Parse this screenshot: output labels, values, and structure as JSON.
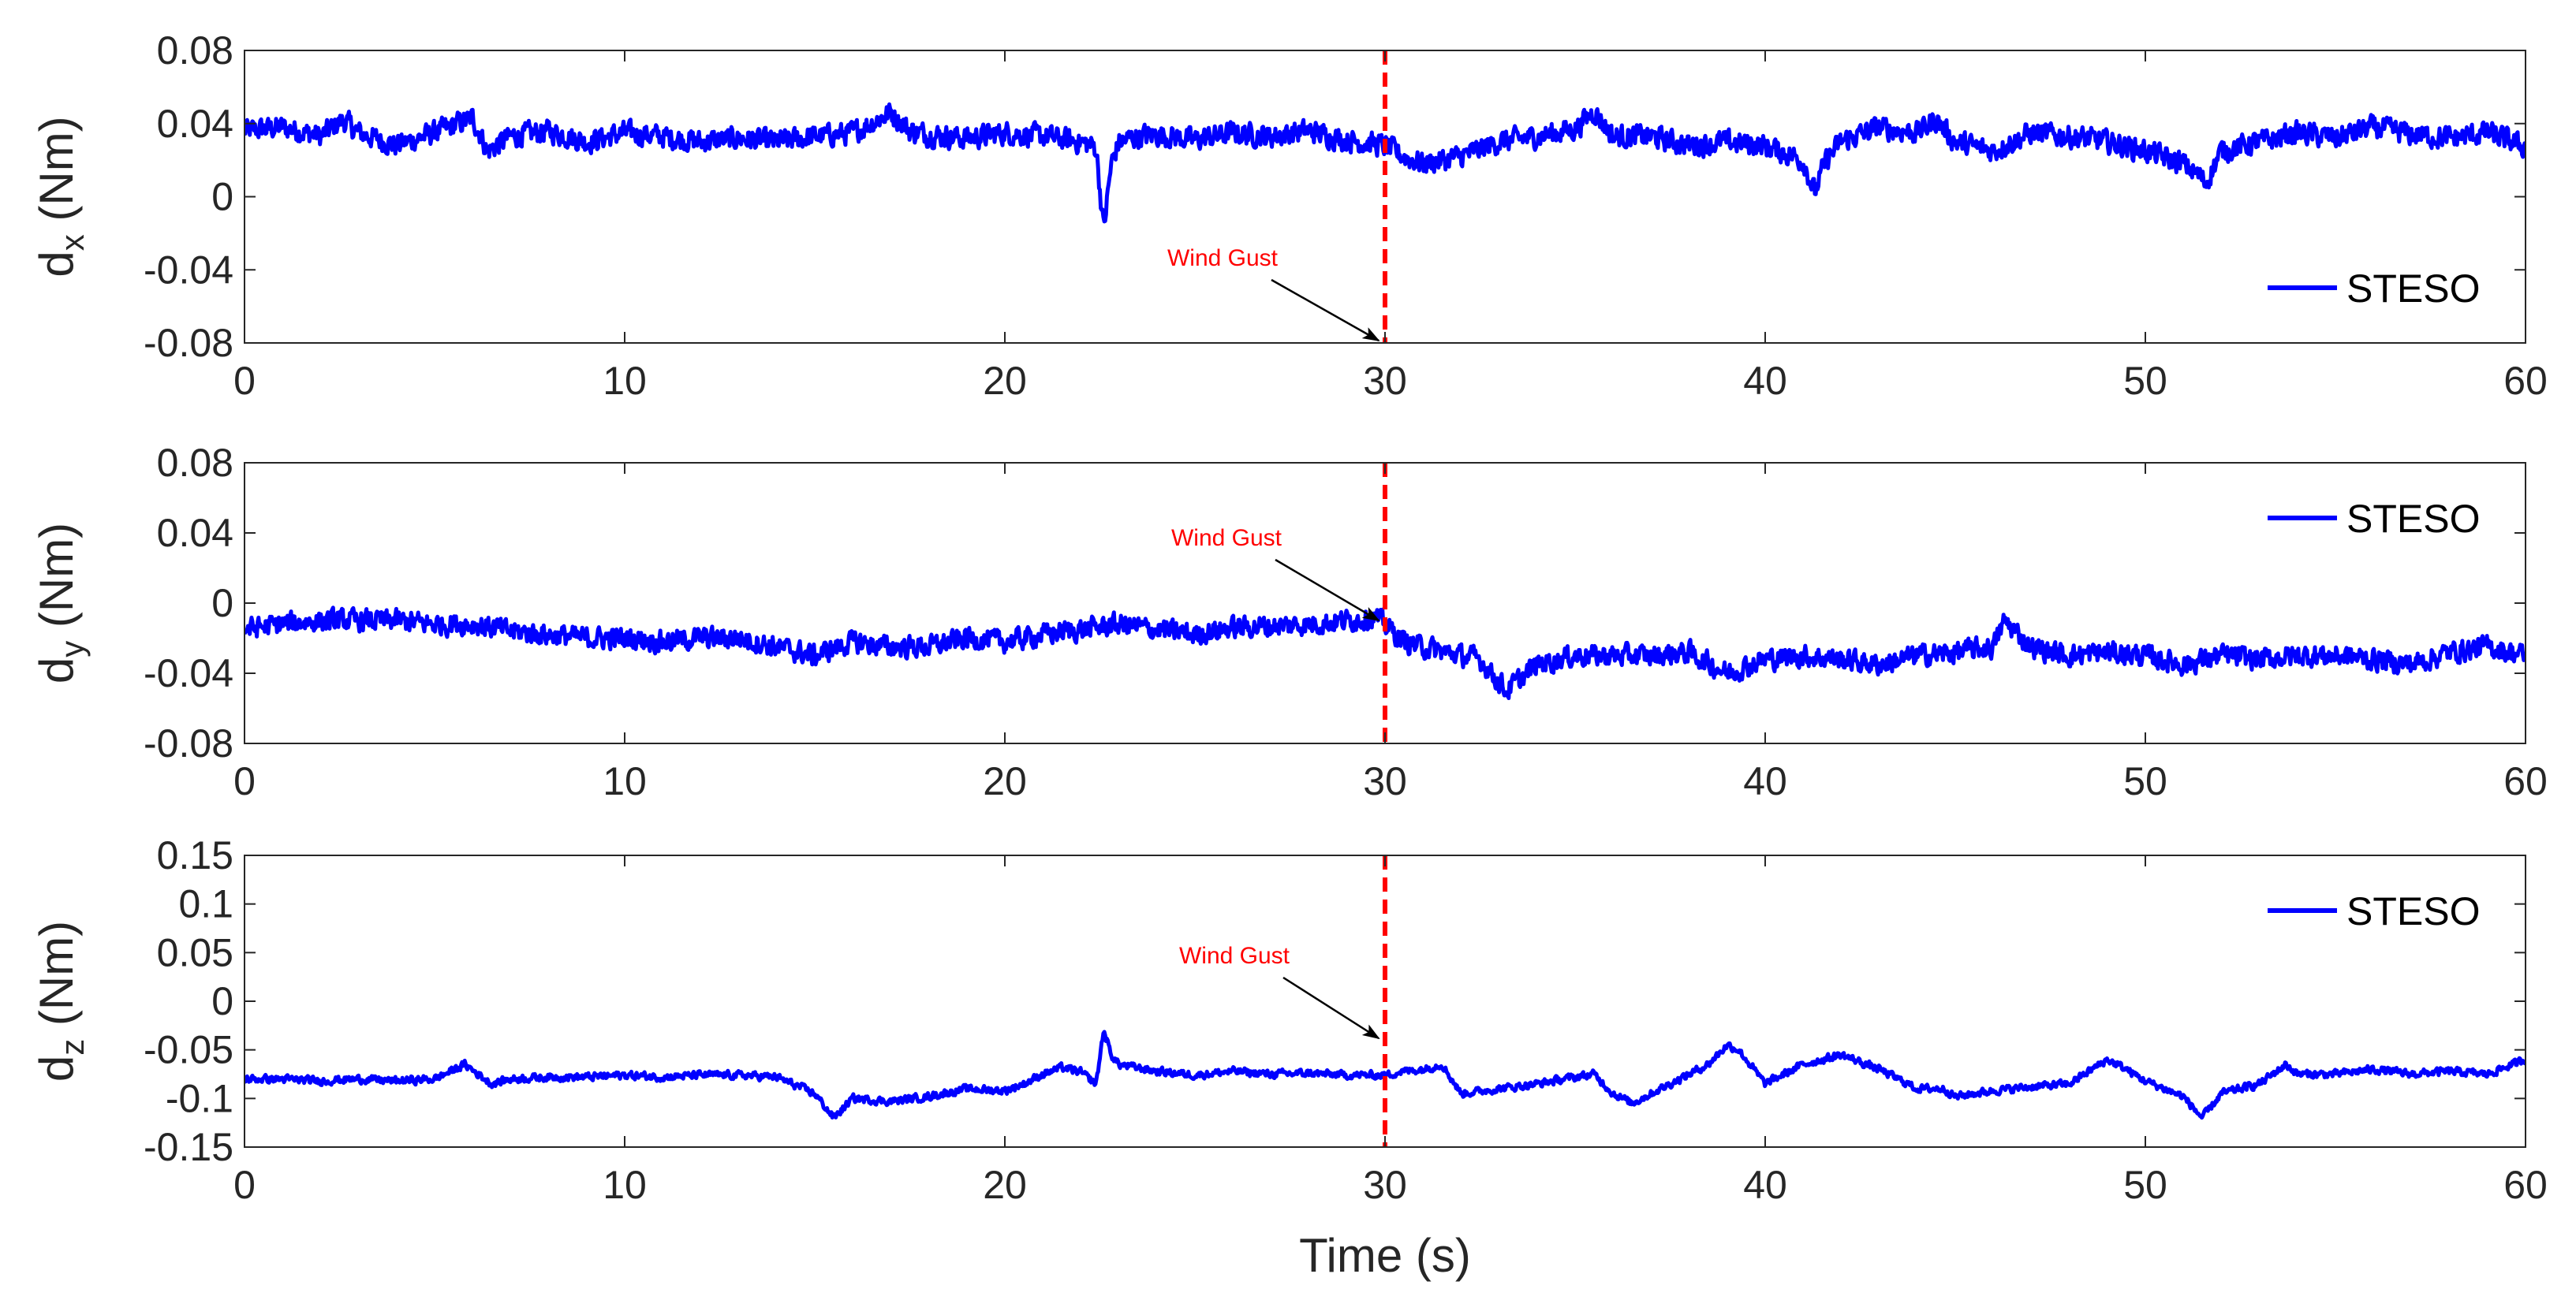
{
  "colors": {
    "series": "#0000FF",
    "event_line": "#FF0000",
    "annotation_text": "#FF0000",
    "arrow": "#000000",
    "axis": "#262626"
  },
  "chart_data": [
    {
      "type": "line",
      "ylabel_main": "d",
      "ylabel_sub": "x",
      "ylabel_unit": " (Nm)",
      "xlim": [
        0,
        60
      ],
      "ylim": [
        -0.08,
        0.08
      ],
      "xticks": [
        0,
        10,
        20,
        30,
        40,
        50,
        60
      ],
      "xtick_labels": [
        "0",
        "10",
        "20",
        "30",
        "40",
        "50",
        "60"
      ],
      "yticks": [
        0.08,
        0.04,
        0,
        -0.04,
        -0.08
      ],
      "ytick_labels": [
        "0.08",
        "0.04",
        "0",
        "-0.04",
        "-0.08"
      ],
      "legend": {
        "label": "STESO",
        "location": "bottom-right"
      },
      "event": {
        "x": 30,
        "label": "Wind Gust"
      },
      "series": [
        {
          "name": "STESO",
          "x": [
            0,
            1,
            2,
            2.6,
            3,
            4,
            5,
            6,
            6.4,
            7,
            8,
            9,
            10,
            11,
            12,
            13,
            14,
            15,
            16,
            17,
            17.5,
            18,
            19,
            20,
            21,
            22,
            22.4,
            22.6,
            22.8,
            23,
            23.5,
            24,
            25,
            26,
            27,
            28,
            29,
            30,
            30.5,
            31,
            32,
            33,
            34,
            35,
            35.5,
            36,
            37,
            38,
            39,
            40,
            41,
            41.3,
            41.6,
            42,
            43,
            44,
            44.5,
            45,
            46,
            47,
            48,
            49,
            50,
            51,
            51.6,
            52,
            53,
            54,
            55,
            56,
            57,
            58,
            59,
            60
          ],
          "values": [
            0.036,
            0.038,
            0.033,
            0.042,
            0.035,
            0.028,
            0.035,
            0.043,
            0.025,
            0.033,
            0.036,
            0.03,
            0.035,
            0.033,
            0.03,
            0.032,
            0.03,
            0.033,
            0.035,
            0.046,
            0.036,
            0.034,
            0.032,
            0.035,
            0.033,
            0.03,
            0.027,
            -0.018,
            0.018,
            0.03,
            0.033,
            0.034,
            0.031,
            0.035,
            0.033,
            0.036,
            0.031,
            0.028,
            0.022,
            0.018,
            0.022,
            0.03,
            0.033,
            0.037,
            0.047,
            0.033,
            0.033,
            0.028,
            0.03,
            0.028,
            0.02,
            0.002,
            0.02,
            0.03,
            0.038,
            0.035,
            0.042,
            0.03,
            0.025,
            0.035,
            0.033,
            0.03,
            0.025,
            0.018,
            0.008,
            0.025,
            0.03,
            0.035,
            0.032,
            0.038,
            0.034,
            0.032,
            0.035,
            0.027
          ],
          "noise": 0.0055
        }
      ]
    },
    {
      "type": "line",
      "ylabel_main": "d",
      "ylabel_sub": "y",
      "ylabel_unit": " (Nm)",
      "xlim": [
        0,
        60
      ],
      "ylim": [
        -0.08,
        0.08
      ],
      "xticks": [
        0,
        10,
        20,
        30,
        40,
        50,
        60
      ],
      "xtick_labels": [
        "0",
        "10",
        "20",
        "30",
        "40",
        "50",
        "60"
      ],
      "yticks": [
        0.08,
        0.04,
        0,
        -0.04,
        -0.08
      ],
      "ytick_labels": [
        "0.08",
        "0.04",
        "0",
        "-0.04",
        "-0.08"
      ],
      "legend": {
        "label": "STESO",
        "location": "top-right"
      },
      "event": {
        "x": 30,
        "label": "Wind Gust"
      },
      "series": [
        {
          "name": "STESO",
          "x": [
            0,
            1,
            2,
            3,
            4,
            5,
            6,
            7,
            8,
            9,
            10,
            11,
            12,
            13,
            14,
            15,
            16,
            17,
            18,
            19,
            20,
            21,
            22,
            23,
            24,
            25,
            26,
            27,
            28,
            29,
            29.7,
            30,
            30.5,
            31,
            32,
            32.5,
            33,
            33.2,
            34,
            35,
            36,
            37,
            38,
            39,
            40,
            41,
            42,
            43,
            44,
            45,
            46,
            46.3,
            47,
            48,
            49,
            50,
            51,
            52,
            53,
            54,
            55,
            56,
            57,
            58,
            59,
            60
          ],
          "values": [
            -0.015,
            -0.012,
            -0.01,
            -0.01,
            -0.01,
            -0.012,
            -0.012,
            -0.016,
            -0.018,
            -0.02,
            -0.02,
            -0.022,
            -0.02,
            -0.02,
            -0.025,
            -0.03,
            -0.022,
            -0.025,
            -0.025,
            -0.02,
            -0.022,
            -0.018,
            -0.015,
            -0.012,
            -0.015,
            -0.018,
            -0.014,
            -0.013,
            -0.012,
            -0.01,
            -0.008,
            -0.012,
            -0.022,
            -0.025,
            -0.03,
            -0.032,
            -0.045,
            -0.05,
            -0.035,
            -0.03,
            -0.03,
            -0.03,
            -0.028,
            -0.04,
            -0.032,
            -0.03,
            -0.032,
            -0.035,
            -0.03,
            -0.028,
            -0.025,
            -0.01,
            -0.025,
            -0.03,
            -0.028,
            -0.03,
            -0.035,
            -0.03,
            -0.032,
            -0.03,
            -0.03,
            -0.032,
            -0.035,
            -0.028,
            -0.025,
            -0.03
          ],
          "noise": 0.0055
        }
      ]
    },
    {
      "type": "line",
      "ylabel_main": "d",
      "ylabel_sub": "z",
      "ylabel_unit": " (Nm)",
      "xlabel": "Time (s)",
      "xlim": [
        0,
        60
      ],
      "ylim": [
        -0.15,
        0.15
      ],
      "xticks": [
        0,
        10,
        20,
        30,
        40,
        50,
        60
      ],
      "xtick_labels": [
        "0",
        "10",
        "20",
        "30",
        "40",
        "50",
        "60"
      ],
      "yticks": [
        0.15,
        0.1,
        0.05,
        0,
        -0.05,
        -0.1,
        -0.15
      ],
      "ytick_labels": [
        "0.15",
        "0.1",
        "0.05",
        "0",
        "-0.05",
        "-0.1",
        "-0.15"
      ],
      "legend": {
        "label": "STESO",
        "location": "top-right"
      },
      "event": {
        "x": 30,
        "label": "Wind Gust"
      },
      "series": [
        {
          "name": "STESO",
          "x": [
            0,
            1,
            2,
            3,
            4,
            5,
            5.8,
            6.5,
            7,
            8,
            9,
            10,
            11,
            12,
            13,
            14,
            15,
            15.5,
            16,
            17,
            18,
            19,
            20,
            20.5,
            21,
            21.5,
            22,
            22.4,
            22.6,
            22.8,
            23,
            24,
            25,
            26,
            27,
            28,
            29,
            30,
            30.5,
            31,
            31.5,
            32,
            33,
            34,
            35,
            35.5,
            36,
            36.5,
            37,
            38,
            38.5,
            39,
            39.3,
            40,
            41,
            42,
            43,
            44,
            44.7,
            45,
            46,
            47,
            48,
            49,
            49.5,
            50,
            51,
            51.5,
            52,
            53,
            53.7,
            54,
            55,
            56,
            57,
            58,
            59,
            60
          ],
          "values": [
            -0.08,
            -0.08,
            -0.082,
            -0.08,
            -0.082,
            -0.08,
            -0.065,
            -0.085,
            -0.08,
            -0.078,
            -0.078,
            -0.076,
            -0.078,
            -0.076,
            -0.076,
            -0.078,
            -0.095,
            -0.12,
            -0.1,
            -0.103,
            -0.098,
            -0.09,
            -0.092,
            -0.085,
            -0.075,
            -0.068,
            -0.073,
            -0.085,
            -0.03,
            -0.055,
            -0.065,
            -0.072,
            -0.076,
            -0.072,
            -0.075,
            -0.074,
            -0.076,
            -0.076,
            -0.072,
            -0.07,
            -0.065,
            -0.095,
            -0.09,
            -0.085,
            -0.078,
            -0.075,
            -0.095,
            -0.105,
            -0.095,
            -0.075,
            -0.065,
            -0.045,
            -0.05,
            -0.085,
            -0.065,
            -0.055,
            -0.07,
            -0.09,
            -0.09,
            -0.098,
            -0.092,
            -0.088,
            -0.085,
            -0.06,
            -0.07,
            -0.082,
            -0.098,
            -0.12,
            -0.095,
            -0.085,
            -0.065,
            -0.075,
            -0.075,
            -0.07,
            -0.075,
            -0.072,
            -0.075,
            -0.06
          ],
          "noise": 0.0035
        }
      ]
    }
  ]
}
